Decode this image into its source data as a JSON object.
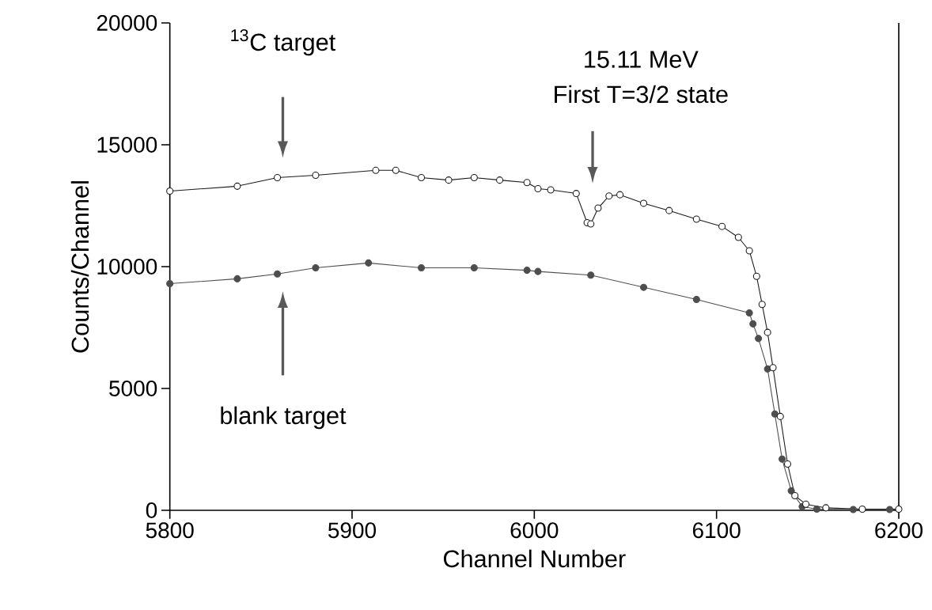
{
  "chart_data": {
    "type": "line",
    "xlabel": "Channel Number",
    "ylabel": "Counts/Channel",
    "xlim": [
      5800,
      6200
    ],
    "xticks": [
      5800,
      5900,
      6000,
      6100,
      6200
    ],
    "ylim": [
      0,
      20000
    ],
    "yticks": [
      0,
      5000,
      10000,
      15000,
      20000
    ],
    "marker": "circle",
    "grid": false,
    "series": [
      {
        "color": "#1a1a1a",
        "x": [
          5800,
          5837,
          5859,
          5880,
          5913,
          5924,
          5938,
          5953,
          5967,
          5981,
          5996,
          6002,
          6009,
          6023,
          6029,
          6031,
          6035,
          6041,
          6047,
          6060,
          6074,
          6089,
          6103,
          6112,
          6118,
          6122,
          6125,
          6128,
          6131,
          6135,
          6139,
          6143,
          6149,
          6160,
          6180,
          6200
        ],
        "values": [
          13100,
          13300,
          13650,
          13750,
          13950,
          13950,
          13650,
          13550,
          13650,
          13550,
          13450,
          13200,
          13150,
          13000,
          11800,
          11750,
          12400,
          12900,
          12950,
          12600,
          12300,
          11950,
          11650,
          11200,
          10650,
          9600,
          8450,
          7300,
          5850,
          3850,
          1900,
          600,
          250,
          100,
          50,
          50
        ]
      },
      {
        "color": "#4d4d4d",
        "x": [
          5800,
          5837,
          5859,
          5880,
          5909,
          5938,
          5967,
          5996,
          6002,
          6031,
          6060,
          6089,
          6118,
          6120,
          6123,
          6128,
          6132,
          6136,
          6141,
          6147,
          6155,
          6175,
          6195
        ],
        "values": [
          9300,
          9500,
          9700,
          9950,
          10150,
          9950,
          9950,
          9850,
          9800,
          9650,
          9150,
          8650,
          8100,
          7650,
          7050,
          5800,
          3950,
          2100,
          800,
          150,
          50,
          30,
          30
        ]
      }
    ],
    "annotations": [
      "$^{13}$C target",
      "blank target",
      "15.11 MeV",
      "First T=3/2 state"
    ]
  }
}
